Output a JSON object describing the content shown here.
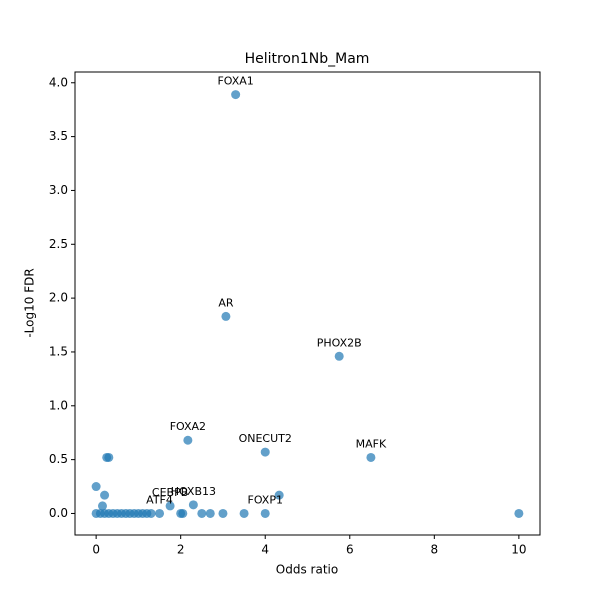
{
  "chart_data": {
    "type": "scatter",
    "title": "Helitron1Nb_Mam",
    "x_label": "Odds ratio",
    "y_label": "-Log10 FDR",
    "color": "#1f77b4",
    "xlim": [
      -0.5,
      10.5
    ],
    "ylim": [
      -0.2,
      4.1
    ],
    "xticks": [
      0,
      2,
      4,
      6,
      8,
      10
    ],
    "yticks": [
      {
        "value": 0,
        "label": "0.0"
      },
      {
        "value": 0.5,
        "label": "0.5"
      },
      {
        "value": 1,
        "label": "1.0"
      },
      {
        "value": 1.5,
        "label": "1.5"
      },
      {
        "value": 2,
        "label": "2.0"
      },
      {
        "value": 2.5,
        "label": "2.5"
      },
      {
        "value": 3,
        "label": "3.0"
      },
      {
        "value": 3.5,
        "label": "3.5"
      },
      {
        "value": 4,
        "label": "4.0"
      }
    ],
    "x": [
      3.3,
      3.07,
      5.75,
      2.17,
      4.0,
      6.5,
      0.25,
      0.3,
      0,
      0.2,
      4.33,
      0.15,
      1.75,
      2.3,
      4.0,
      1.5,
      0,
      0.1,
      0.2,
      0.3,
      0.4,
      0.5,
      0.6,
      0.7,
      0.8,
      0.9,
      1.0,
      1.1,
      1.2,
      1.3,
      2.0,
      2.05,
      2.5,
      2.7,
      3.0,
      3.5,
      10
    ],
    "values": [
      3.89,
      1.83,
      1.46,
      0.68,
      0.57,
      0.52,
      0.52,
      0.52,
      0.25,
      0.17,
      0.17,
      0.07,
      0.07,
      0.08,
      0,
      0,
      0,
      0,
      0,
      0,
      0,
      0,
      0,
      0,
      0,
      0,
      0,
      0,
      0,
      0,
      0,
      0,
      0,
      0,
      0,
      0,
      0
    ],
    "point_labels": [
      "FOXA1",
      "AR",
      "PHOX2B",
      "FOXA2",
      "ONECUT2",
      "MAFK",
      null,
      null,
      null,
      null,
      null,
      null,
      "CEBPB",
      "HOXB13",
      "FOXP1",
      "ATF4",
      null,
      null,
      null,
      null,
      null,
      null,
      null,
      null,
      null,
      null,
      null,
      null,
      null,
      null,
      null,
      null,
      null,
      null,
      null,
      null,
      null
    ]
  }
}
